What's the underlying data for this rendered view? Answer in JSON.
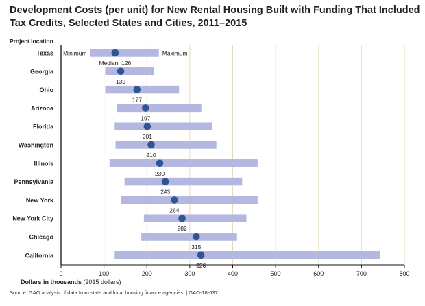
{
  "title": "Development Costs (per unit) for New Rental Housing Built with Funding That Included Tax Credits, Selected States and Cities, 2011–2015",
  "source": "Source: GAO analysis of data from state and local housing finance agencies.  |  GAO-18-637",
  "chart_data": {
    "type": "range-bar",
    "title": "Development Costs (per unit) for New Rental Housing Built with Funding That Included Tax Credits, Selected States and Cities, 2011–2015",
    "ylabel": "Project location",
    "xlabel": "Dollars in thousands",
    "xlabel_suffix": "(2015 dollars)",
    "xlim": [
      0,
      800
    ],
    "xticks": [
      "0",
      "100",
      "200",
      "300",
      "400",
      "500",
      "600",
      "700",
      "800"
    ],
    "legend": {
      "min": "Minimum",
      "max": "Maximum",
      "median_prefix": "Median: "
    },
    "colors": {
      "range": "#b4b7e0",
      "median": "#2f5597",
      "grid": "#e4dcb6",
      "axis": "#111111"
    },
    "rows": [
      {
        "label": "Texas",
        "min": 68,
        "max": 228,
        "median": 126,
        "median_label": "126"
      },
      {
        "label": "Georgia",
        "min": 103,
        "max": 217,
        "median": 139,
        "median_label": "139"
      },
      {
        "label": "Ohio",
        "min": 103,
        "max": 275,
        "median": 177,
        "median_label": "177"
      },
      {
        "label": "Arizona",
        "min": 130,
        "max": 327,
        "median": 197,
        "median_label": "197"
      },
      {
        "label": "Florida",
        "min": 125,
        "max": 352,
        "median": 201,
        "median_label": "201"
      },
      {
        "label": "Washington",
        "min": 127,
        "max": 362,
        "median": 210,
        "median_label": "210"
      },
      {
        "label": "Illinois",
        "min": 113,
        "max": 458,
        "median": 230,
        "median_label": "230"
      },
      {
        "label": "Pennsylvania",
        "min": 148,
        "max": 422,
        "median": 243,
        "median_label": "243"
      },
      {
        "label": "New York",
        "min": 140,
        "max": 458,
        "median": 264,
        "median_label": "264"
      },
      {
        "label": "New York City",
        "min": 193,
        "max": 432,
        "median": 282,
        "median_label": "282"
      },
      {
        "label": "Chicago",
        "min": 187,
        "max": 410,
        "median": 315,
        "median_label": "315"
      },
      {
        "label": "California",
        "min": 125,
        "max": 743,
        "median": 326,
        "median_label": "326"
      }
    ]
  }
}
